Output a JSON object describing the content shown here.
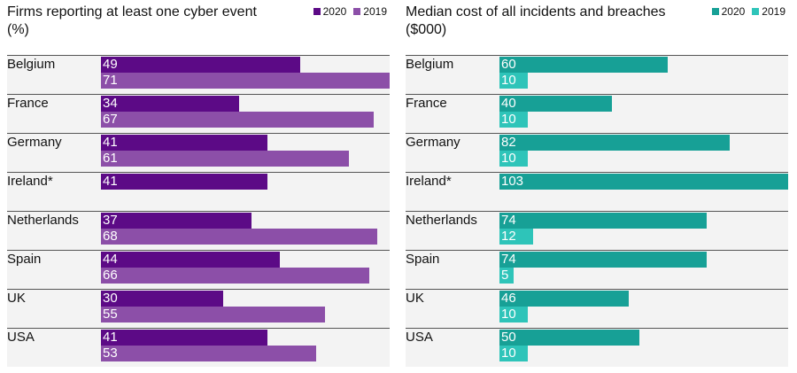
{
  "chart_data": [
    {
      "type": "bar",
      "title": "Firms reporting at least one cyber event\n(%)",
      "legend": [
        {
          "name": "2020",
          "color": "#5c0a86"
        },
        {
          "name": "2019",
          "color": "#8c4fa8"
        }
      ],
      "categories": [
        "Belgium",
        "France",
        "Germany",
        "Ireland*",
        "Netherlands",
        "Spain",
        "UK",
        "USA"
      ],
      "series": [
        {
          "name": "2020",
          "color": "#5c0a86",
          "values": [
            49,
            34,
            41,
            41,
            37,
            44,
            30,
            41
          ]
        },
        {
          "name": "2019",
          "color": "#8c4fa8",
          "values": [
            71,
            67,
            61,
            null,
            68,
            66,
            55,
            53
          ]
        }
      ],
      "xlim": [
        0,
        71
      ]
    },
    {
      "type": "bar",
      "title": "Median cost of all incidents and breaches\n($000)",
      "legend": [
        {
          "name": "2020",
          "color": "#17a096"
        },
        {
          "name": "2019",
          "color": "#2ec4b9"
        }
      ],
      "categories": [
        "Belgium",
        "France",
        "Germany",
        "Ireland*",
        "Netherlands",
        "Spain",
        "UK",
        "USA"
      ],
      "series": [
        {
          "name": "2020",
          "color": "#17a096",
          "values": [
            60,
            40,
            82,
            103,
            74,
            74,
            46,
            50
          ]
        },
        {
          "name": "2019",
          "color": "#2ec4b9",
          "values": [
            10,
            10,
            10,
            null,
            12,
            5,
            10,
            10
          ]
        }
      ],
      "xlim": [
        0,
        103
      ]
    }
  ]
}
